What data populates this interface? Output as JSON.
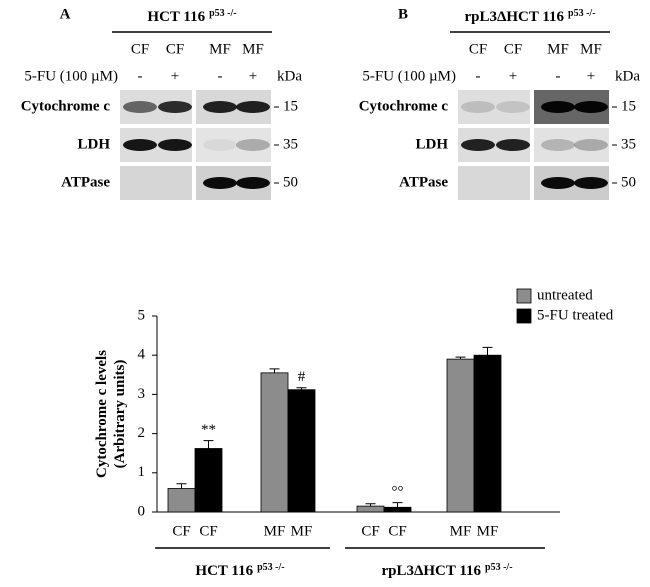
{
  "blots": [
    {
      "letter": "A",
      "title": "HCT 116",
      "title_sup": "p53 -/-",
      "lanes": [
        "CF",
        "CF",
        "MF",
        "MF"
      ],
      "treatment_label": "5-FU (100 µM)",
      "treatment": [
        "-",
        "+",
        "-",
        "+"
      ],
      "unit": "kDa",
      "rows": [
        {
          "name": "Cytochrome c",
          "kda": "15"
        },
        {
          "name": "LDH",
          "kda": "35"
        },
        {
          "name": "ATPase",
          "kda": "50"
        }
      ]
    },
    {
      "letter": "B",
      "title": "rpL3ΔHCT 116",
      "title_sup": "p53 -/-",
      "lanes": [
        "CF",
        "CF",
        "MF",
        "MF"
      ],
      "treatment_label": "5-FU (100 µM)",
      "treatment": [
        "-",
        "+",
        "-",
        "+"
      ],
      "unit": "kDa",
      "rows": [
        {
          "name": "Cytochrome c",
          "kda": "15"
        },
        {
          "name": "LDH",
          "kda": "35"
        },
        {
          "name": "ATPase",
          "kda": "50"
        }
      ]
    }
  ],
  "chart_data": {
    "type": "bar",
    "ylabel": [
      "Cytochrome c levels",
      "(Arbitrary units)"
    ],
    "categories": [
      "CF",
      "MF",
      "CF",
      "MF"
    ],
    "group_labels": [
      "HCT 116",
      "rpL3ΔHCT 116"
    ],
    "group_sup": "p53 -/-",
    "series": [
      {
        "name": "untreated",
        "color": "#8c8c8c",
        "values": [
          0.6,
          3.55,
          0.15,
          3.9
        ],
        "errors": [
          0.12,
          0.1,
          0.06,
          0.05
        ],
        "annotations": [
          null,
          null,
          null,
          null
        ]
      },
      {
        "name": "5-FU treated",
        "color": "#000000",
        "values": [
          1.62,
          3.12,
          0.12,
          4.0
        ],
        "errors": [
          0.2,
          0.05,
          0.12,
          0.2
        ],
        "annotations": [
          "**",
          "#",
          "°°",
          null
        ]
      }
    ],
    "ylim": [
      0,
      5
    ],
    "yticks": [
      0,
      1,
      2,
      3,
      4,
      5
    ],
    "legend": "upper right"
  }
}
